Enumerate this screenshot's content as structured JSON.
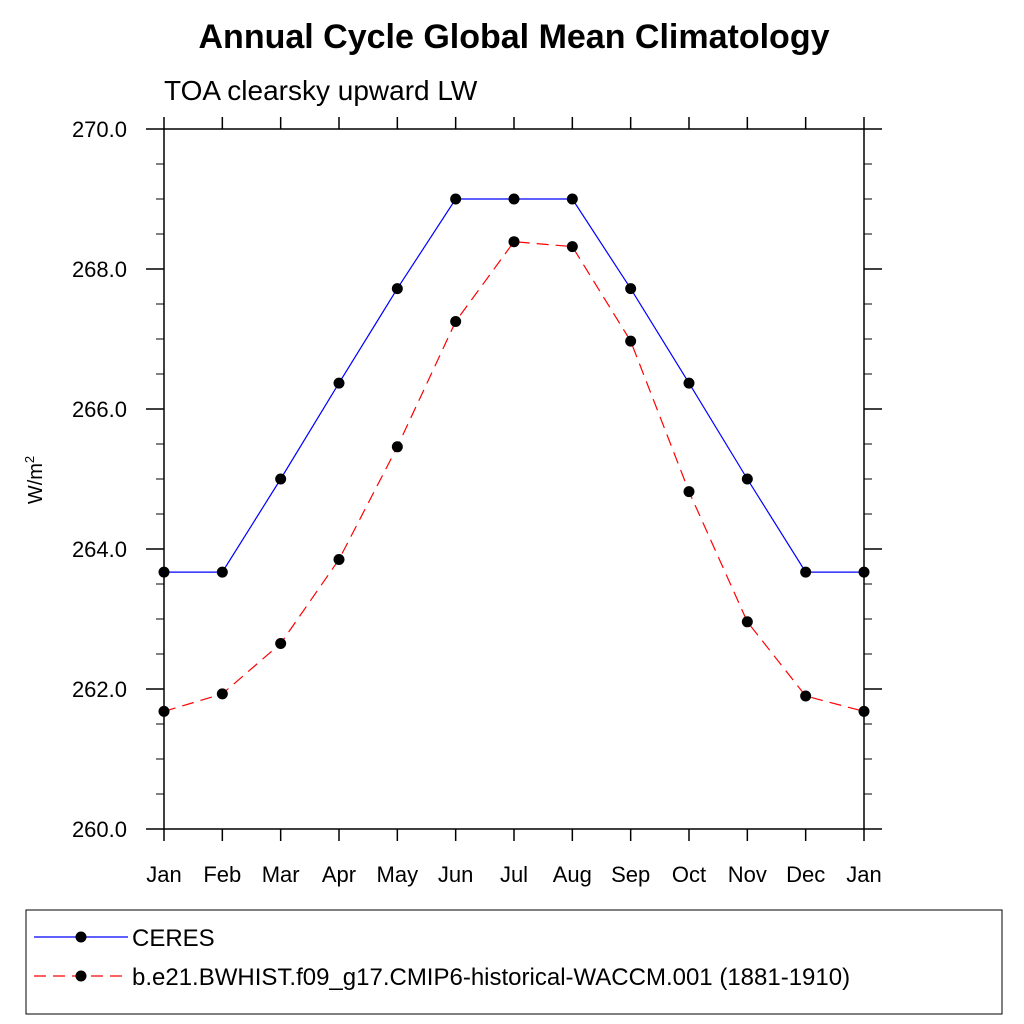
{
  "chart_data": {
    "type": "line",
    "title": "Annual Cycle Global Mean Climatology",
    "subtitle": "TOA clearsky upward LW",
    "ylabel": "W/m",
    "ylabel_sup": "2",
    "xlabel": "",
    "categories": [
      "Jan",
      "Feb",
      "Mar",
      "Apr",
      "May",
      "Jun",
      "Jul",
      "Aug",
      "Sep",
      "Oct",
      "Nov",
      "Dec",
      "Jan"
    ],
    "ylim": [
      260.0,
      270.0
    ],
    "y_ticks": [
      "260.0",
      "262.0",
      "264.0",
      "266.0",
      "268.0",
      "270.0"
    ],
    "grid": false,
    "legend_position": "bottom",
    "series": [
      {
        "name": "CERES",
        "color": "#0000ff",
        "line_style": "solid",
        "marker": "filled-circle",
        "values": [
          263.67,
          263.67,
          265.0,
          266.37,
          267.72,
          269.0,
          269.0,
          269.0,
          267.72,
          266.37,
          265.0,
          263.67,
          263.67
        ]
      },
      {
        "name": "b.e21.BWHIST.f09_g17.CMIP6-historical-WACCM.001 (1881-1910)",
        "color": "#ff0000",
        "line_style": "dashed",
        "marker": "filled-circle",
        "values": [
          261.68,
          261.93,
          262.65,
          263.85,
          265.46,
          267.25,
          268.39,
          268.32,
          266.97,
          264.82,
          262.96,
          261.9,
          261.68
        ]
      }
    ]
  }
}
